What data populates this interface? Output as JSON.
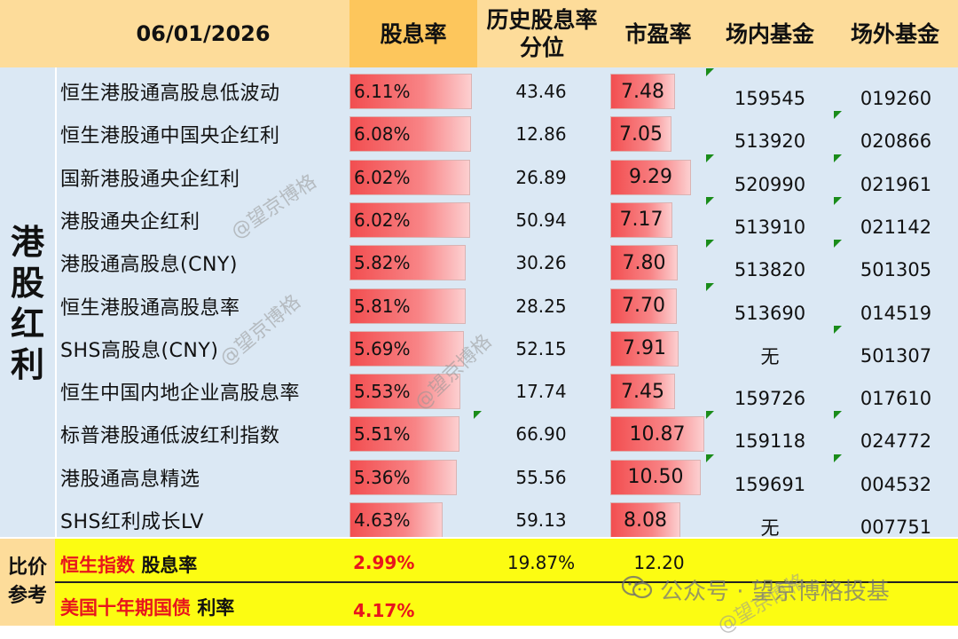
{
  "header": {
    "date": "06/01/2026",
    "yield": "股息率",
    "percentile_line1": "历史股息率",
    "percentile_line2": "分位",
    "pe": "市盈率",
    "onsite": "场内基金",
    "offsite": "场外基金"
  },
  "group_label": [
    "港",
    "股",
    "红",
    "利"
  ],
  "rows": [
    {
      "name": "恒生港股通高股息低波动",
      "yield": "6.11%",
      "yield_value": 6.11,
      "percentile": "43.46",
      "pe": "7.48",
      "pe_value": 7.48,
      "onsite": "159545",
      "offsite": "019260"
    },
    {
      "name": "恒生港股通中国央企红利",
      "yield": "6.08%",
      "yield_value": 6.08,
      "percentile": "12.86",
      "pe": "7.05",
      "pe_value": 7.05,
      "onsite": "513920",
      "offsite": "020866"
    },
    {
      "name": "国新港股通央企红利",
      "yield": "6.02%",
      "yield_value": 6.02,
      "percentile": "26.89",
      "pe": "9.29",
      "pe_value": 9.29,
      "onsite": "520990",
      "offsite": "021961"
    },
    {
      "name": "港股通央企红利",
      "yield": "6.02%",
      "yield_value": 6.02,
      "percentile": "50.94",
      "pe": "7.17",
      "pe_value": 7.17,
      "onsite": "513910",
      "offsite": "021142"
    },
    {
      "name": "港股通高股息(CNY)",
      "yield": "5.82%",
      "yield_value": 5.82,
      "percentile": "30.26",
      "pe": "7.80",
      "pe_value": 7.8,
      "onsite": "513820",
      "offsite": "501305"
    },
    {
      "name": "恒生港股通高股息率",
      "yield": "5.81%",
      "yield_value": 5.81,
      "percentile": "28.25",
      "pe": "7.70",
      "pe_value": 7.7,
      "onsite": "513690",
      "offsite": "014519"
    },
    {
      "name": "SHS高股息(CNY)",
      "yield": "5.69%",
      "yield_value": 5.69,
      "percentile": "52.15",
      "pe": "7.91",
      "pe_value": 7.91,
      "onsite": "无",
      "offsite": "501307"
    },
    {
      "name": "恒生中国内地企业高股息率",
      "yield": "5.53%",
      "yield_value": 5.53,
      "percentile": "17.74",
      "pe": "7.45",
      "pe_value": 7.45,
      "onsite": "159726",
      "offsite": "017610"
    },
    {
      "name": "标普港股通低波红利指数",
      "yield": "5.51%",
      "yield_value": 5.51,
      "percentile": "66.90",
      "pe": "10.87",
      "pe_value": 10.87,
      "onsite": "159118",
      "offsite": "024772"
    },
    {
      "name": "港股通高息精选",
      "yield": "5.36%",
      "yield_value": 5.36,
      "percentile": "55.56",
      "pe": "10.50",
      "pe_value": 10.5,
      "onsite": "159691",
      "offsite": "004532"
    },
    {
      "name": "SHS红利成长LV",
      "yield": "4.63%",
      "yield_value": 4.63,
      "percentile": "59.13",
      "pe": "8.08",
      "pe_value": 8.08,
      "onsite": "无",
      "offsite": "007751"
    }
  ],
  "reference": {
    "label_line1": "比价",
    "label_line2": "参考",
    "hsi_name": "恒生指数",
    "hsi_metric": "股息率",
    "hsi_yield": "2.99%",
    "hsi_percentile": "19.87%",
    "hsi_pe": "12.20",
    "bond_name": "美国十年期国债",
    "bond_metric": "利率",
    "bond_rate": "4.17%"
  },
  "watermark": {
    "tag": "@望京博格",
    "wechat": "公众号 · 望京博格投基"
  },
  "colors": {
    "header_bg": "#fddc9a",
    "yield_header_bg": "#fdc65c",
    "table_bg": "#dbe8f4",
    "bar_red": "#f24e50",
    "reference_bg": "#fcfc12",
    "reference_red": "#e8141d",
    "comment_marker": "#1a8c1a"
  }
}
